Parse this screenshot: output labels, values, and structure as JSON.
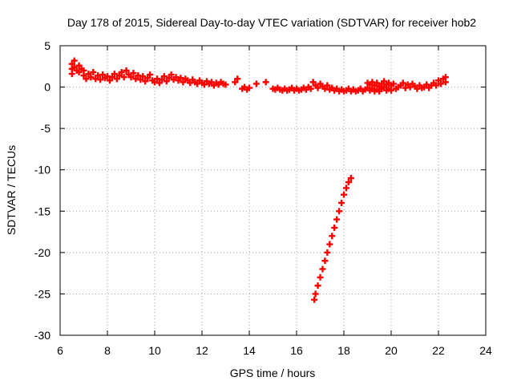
{
  "chart_data": {
    "type": "scatter",
    "title": "Day 178 of 2015, Sidereal Day-to-day VTEC variation (SDTVAR) for receiver hob2",
    "xlabel": "GPS time / hours",
    "ylabel": "SDTVAR / TECUs",
    "xlim": [
      6,
      24
    ],
    "ylim": [
      -30,
      5
    ],
    "xticks": [
      6,
      8,
      10,
      12,
      14,
      16,
      18,
      20,
      22,
      24
    ],
    "yticks": [
      5,
      0,
      -5,
      -10,
      -15,
      -20,
      -25,
      -30
    ],
    "grid": true,
    "marker": "plus",
    "color": "#ff0000",
    "series": [
      {
        "name": "",
        "points": [
          [
            6.5,
            2.8
          ],
          [
            6.5,
            2.2
          ],
          [
            6.5,
            1.6
          ],
          [
            6.6,
            3.2
          ],
          [
            6.6,
            2.4
          ],
          [
            6.7,
            2.0
          ],
          [
            6.8,
            2.6
          ],
          [
            6.8,
            1.8
          ],
          [
            6.9,
            2.2
          ],
          [
            7.0,
            1.4
          ],
          [
            7.0,
            2.0
          ],
          [
            7.1,
            1.0
          ],
          [
            7.2,
            1.6
          ],
          [
            7.3,
            1.2
          ],
          [
            7.4,
            1.8
          ],
          [
            7.5,
            1.0
          ],
          [
            7.6,
            1.4
          ],
          [
            7.7,
            0.9
          ],
          [
            7.8,
            1.5
          ],
          [
            7.9,
            1.1
          ],
          [
            8.0,
            1.3
          ],
          [
            8.1,
            0.8
          ],
          [
            8.2,
            1.2
          ],
          [
            8.3,
            1.6
          ],
          [
            8.4,
            1.0
          ],
          [
            8.5,
            1.4
          ],
          [
            8.6,
            1.8
          ],
          [
            8.7,
            1.2
          ],
          [
            8.8,
            2.0
          ],
          [
            8.9,
            1.5
          ],
          [
            9.0,
            1.2
          ],
          [
            9.1,
            1.7
          ],
          [
            9.2,
            1.0
          ],
          [
            9.3,
            1.4
          ],
          [
            9.4,
            0.9
          ],
          [
            9.5,
            1.3
          ],
          [
            9.6,
            0.7
          ],
          [
            9.7,
            1.1
          ],
          [
            9.8,
            1.5
          ],
          [
            9.9,
            0.8
          ],
          [
            10.0,
            0.6
          ],
          [
            10.1,
            1.0
          ],
          [
            10.2,
            0.5
          ],
          [
            10.3,
            0.9
          ],
          [
            10.4,
            1.3
          ],
          [
            10.5,
            0.7
          ],
          [
            10.6,
            1.1
          ],
          [
            10.7,
            1.5
          ],
          [
            10.8,
            0.9
          ],
          [
            10.9,
            1.2
          ],
          [
            11.0,
            0.8
          ],
          [
            11.1,
            1.1
          ],
          [
            11.2,
            0.6
          ],
          [
            11.3,
            1.0
          ],
          [
            11.4,
            0.8
          ],
          [
            11.5,
            0.5
          ],
          [
            11.6,
            0.9
          ],
          [
            11.7,
            0.6
          ],
          [
            11.8,
            0.4
          ],
          [
            11.9,
            0.8
          ],
          [
            12.0,
            0.5
          ],
          [
            12.1,
            0.3
          ],
          [
            12.2,
            0.7
          ],
          [
            12.3,
            0.4
          ],
          [
            12.4,
            0.6
          ],
          [
            12.5,
            0.2
          ],
          [
            12.6,
            0.5
          ],
          [
            12.7,
            0.3
          ],
          [
            12.8,
            0.6
          ],
          [
            12.9,
            0.4
          ],
          [
            13.0,
            0.3
          ],
          [
            13.4,
            0.6
          ],
          [
            13.5,
            1.0
          ],
          [
            13.7,
            -0.2
          ],
          [
            13.8,
            0.0
          ],
          [
            13.9,
            -0.3
          ],
          [
            14.0,
            -0.1
          ],
          [
            14.3,
            0.4
          ],
          [
            14.7,
            0.6
          ],
          [
            15.0,
            -0.2
          ],
          [
            15.1,
            -0.3
          ],
          [
            15.2,
            -0.1
          ],
          [
            15.3,
            -0.3
          ],
          [
            15.4,
            -0.4
          ],
          [
            15.5,
            -0.2
          ],
          [
            15.6,
            -0.4
          ],
          [
            15.7,
            -0.3
          ],
          [
            15.8,
            -0.1
          ],
          [
            15.9,
            -0.4
          ],
          [
            16.0,
            -0.2
          ],
          [
            16.1,
            -0.4
          ],
          [
            16.2,
            -0.3
          ],
          [
            16.3,
            -0.1
          ],
          [
            16.4,
            -0.3
          ],
          [
            16.5,
            0.0
          ],
          [
            16.6,
            -0.2
          ],
          [
            16.7,
            0.6
          ],
          [
            16.8,
            0.2
          ],
          [
            16.9,
            -0.1
          ],
          [
            17.0,
            0.4
          ],
          [
            17.1,
            0.1
          ],
          [
            17.2,
            -0.2
          ],
          [
            17.3,
            0.2
          ],
          [
            17.4,
            -0.3
          ],
          [
            17.5,
            -0.1
          ],
          [
            17.6,
            -0.4
          ],
          [
            17.7,
            -0.2
          ],
          [
            17.8,
            -0.5
          ],
          [
            17.9,
            -0.3
          ],
          [
            18.0,
            -0.5
          ],
          [
            18.1,
            -0.4
          ],
          [
            18.2,
            -0.2
          ],
          [
            18.3,
            -0.5
          ],
          [
            18.4,
            -0.3
          ],
          [
            18.5,
            -0.5
          ],
          [
            18.6,
            -0.4
          ],
          [
            18.7,
            -0.2
          ],
          [
            18.8,
            -0.5
          ],
          [
            18.9,
            -0.3
          ],
          [
            19.0,
            -0.1
          ],
          [
            19.0,
            0.5
          ],
          [
            19.1,
            -0.4
          ],
          [
            19.1,
            0.3
          ],
          [
            19.2,
            0.6
          ],
          [
            19.2,
            -0.2
          ],
          [
            19.3,
            0.2
          ],
          [
            19.3,
            -0.5
          ],
          [
            19.4,
            0.5
          ],
          [
            19.4,
            -0.3
          ],
          [
            19.5,
            0.1
          ],
          [
            19.5,
            -0.5
          ],
          [
            19.6,
            0.4
          ],
          [
            19.6,
            -0.2
          ],
          [
            19.7,
            0.7
          ],
          [
            19.7,
            0.0
          ],
          [
            19.8,
            0.3
          ],
          [
            19.8,
            -0.4
          ],
          [
            19.9,
            0.5
          ],
          [
            19.9,
            -0.2
          ],
          [
            20.0,
            0.2
          ],
          [
            20.0,
            -0.4
          ],
          [
            20.1,
            0.4
          ],
          [
            20.2,
            -0.2
          ],
          [
            20.3,
            0.0
          ],
          [
            20.4,
            0.2
          ],
          [
            20.5,
            0.5
          ],
          [
            20.6,
            -0.1
          ],
          [
            20.7,
            0.3
          ],
          [
            20.8,
            0.0
          ],
          [
            20.9,
            0.4
          ],
          [
            21.0,
            0.1
          ],
          [
            21.1,
            -0.2
          ],
          [
            21.2,
            0.2
          ],
          [
            21.3,
            -0.1
          ],
          [
            21.4,
            0.0
          ],
          [
            21.5,
            0.3
          ],
          [
            21.6,
            -0.1
          ],
          [
            21.7,
            0.2
          ],
          [
            21.8,
            0.5
          ],
          [
            21.9,
            0.2
          ],
          [
            22.0,
            0.8
          ],
          [
            22.1,
            0.4
          ],
          [
            22.2,
            1.0
          ],
          [
            22.3,
            0.6
          ],
          [
            22.3,
            1.2
          ],
          [
            16.75,
            -25.7
          ],
          [
            16.8,
            -25.0
          ],
          [
            16.9,
            -24.0
          ],
          [
            17.0,
            -23.0
          ],
          [
            17.1,
            -22.0
          ],
          [
            17.2,
            -21.0
          ],
          [
            17.3,
            -20.0
          ],
          [
            17.4,
            -19.0
          ],
          [
            17.5,
            -18.0
          ],
          [
            17.6,
            -17.0
          ],
          [
            17.7,
            -16.0
          ],
          [
            17.8,
            -15.0
          ],
          [
            17.9,
            -14.0
          ],
          [
            18.0,
            -13.0
          ],
          [
            18.1,
            -12.2
          ],
          [
            18.2,
            -11.5
          ],
          [
            18.3,
            -11.0
          ]
        ]
      }
    ]
  }
}
